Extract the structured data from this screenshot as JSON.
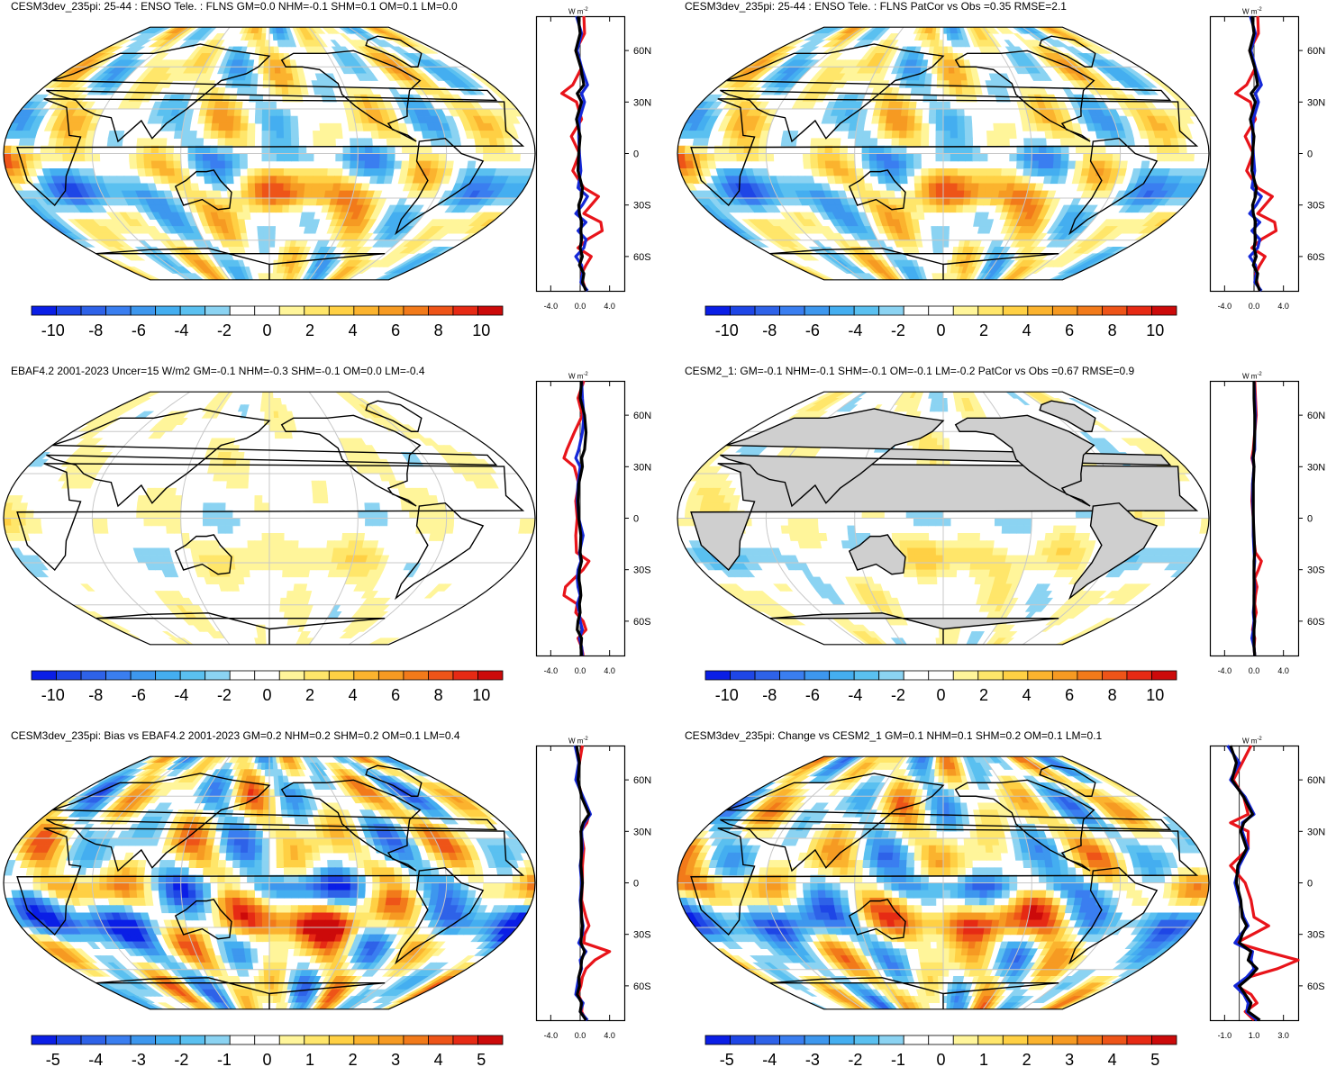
{
  "colors": {
    "land": "#cfcfcf",
    "grid": "#c8c8c8",
    "cb_scale_a": [
      "#0a1ee6",
      "#1e46e6",
      "#2e62e8",
      "#3a7ef0",
      "#3d97ee",
      "#44aef0",
      "#5ac0f0",
      "#8bd3f2",
      "#ffffff",
      "#ffffff",
      "#fff59a",
      "#ffe66a",
      "#ffd044",
      "#fbb32e",
      "#f69a22",
      "#f27a1a",
      "#ee5418",
      "#e62a14",
      "#cc0a0a"
    ],
    "cb_scale_b": [
      "#0a1ee6",
      "#1e46e6",
      "#2e62e8",
      "#3a7ef0",
      "#3d97ee",
      "#44aef0",
      "#5ac0f0",
      "#8bd3f2",
      "#ffffff",
      "#ffffff",
      "#fff59a",
      "#ffe66a",
      "#ffd044",
      "#fbb32e",
      "#f69a22",
      "#f27a1a",
      "#ee5418",
      "#e62a14",
      "#cc0a0a"
    ],
    "profile_model": "#1428d8",
    "profile_obs": "#e8141a",
    "profile_other": "#000000"
  },
  "panels": [
    {
      "id": "p1",
      "title": "CESM3dev_235pi: 25-44 : ENSO Tele. : FLNS GM=0.0 NHM=-0.1 SHM=0.1 OM=0.1 LM=0.0",
      "profile_xticks": [
        "-4.0",
        "0.0",
        "4.0"
      ],
      "profile_units": "W m",
      "profile_units_exp": "-2",
      "colorbar_ticks": [
        "-10",
        "-8",
        "-6",
        "-4",
        "-2",
        "0",
        "2",
        "4",
        "6",
        "8",
        "10"
      ]
    },
    {
      "id": "p2",
      "title": "CESM3dev_235pi: 25-44 : ENSO Tele. : FLNS PatCor vs Obs =0.35 RMSE=2.1",
      "profile_xticks": [
        "-4.0",
        "0.0",
        "4.0"
      ],
      "profile_units": "W m",
      "profile_units_exp": "-2",
      "colorbar_ticks": [
        "-10",
        "-8",
        "-6",
        "-4",
        "-2",
        "0",
        "2",
        "4",
        "6",
        "8",
        "10"
      ]
    },
    {
      "id": "p3",
      "title": "EBAF4.2 2001-2023 Uncer=15 W/m2 GM=-0.1 NHM=-0.3 SHM=-0.1 OM=0.0 LM=-0.4",
      "profile_xticks": [
        "-4.0",
        "0.0",
        "4.0"
      ],
      "profile_units": "W m",
      "profile_units_exp": "-2",
      "colorbar_ticks": [
        "-10",
        "-8",
        "-6",
        "-4",
        "-2",
        "0",
        "2",
        "4",
        "6",
        "8",
        "10"
      ]
    },
    {
      "id": "p4",
      "title": "CESM2_1: GM=-0.1 NHM=-0.1 SHM=-0.1 OM=-0.1 LM=-0.2 PatCor vs Obs =0.67 RMSE=0.9",
      "profile_xticks": [
        "-4.0",
        "0.0",
        "4.0"
      ],
      "profile_units": "W m",
      "profile_units_exp": "-2",
      "colorbar_ticks": [
        "-10",
        "-8",
        "-6",
        "-4",
        "-2",
        "0",
        "2",
        "4",
        "6",
        "8",
        "10"
      ]
    },
    {
      "id": "p5",
      "title": "CESM3dev_235pi: Bias vs EBAF4.2 2001-2023 GM=0.2 NHM=0.2 SHM=0.2 OM=0.1 LM=0.4",
      "profile_xticks": [
        "-4.0",
        "0.0",
        "4.0"
      ],
      "profile_units": "W m",
      "profile_units_exp": "-2",
      "colorbar_ticks": [
        "-5",
        "-4",
        "-3",
        "-2",
        "-1",
        "0",
        "1",
        "2",
        "3",
        "4",
        "5"
      ]
    },
    {
      "id": "p6",
      "title": "CESM3dev_235pi: Change vs CESM2_1 GM=0.1 NHM=0.1 SHM=0.2 OM=0.1 LM=0.1",
      "profile_xticks": [
        "-1.0",
        "1.0",
        "3.0"
      ],
      "profile_units": "W m",
      "profile_units_exp": "-2",
      "colorbar_ticks": [
        "-5",
        "-4",
        "-3",
        "-2",
        "-1",
        "0",
        "1",
        "2",
        "3",
        "4",
        "5"
      ]
    }
  ],
  "chart_data": [
    {
      "type": "heatmap",
      "title": "CESM3dev_235pi: 25-44 : ENSO Tele. : FLNS GM=0.0 NHM=-0.1 SHM=0.1 OM=0.1 LM=0.0",
      "colorbar": {
        "min": -11,
        "max": 11,
        "ticks": [
          -10,
          -8,
          -6,
          -4,
          -2,
          0,
          2,
          4,
          6,
          8,
          10
        ]
      },
      "profile": {
        "type": "line",
        "xlim": [
          -6,
          6
        ],
        "xticks": [
          -4,
          0,
          4
        ],
        "yticks": [
          "60N",
          "30N",
          "0",
          "30S",
          "60S"
        ],
        "lat": [
          80,
          70,
          60,
          50,
          40,
          35,
          30,
          20,
          10,
          0,
          -10,
          -20,
          -25,
          -30,
          -35,
          -40,
          -45,
          -50,
          -55,
          -60,
          -65,
          -70,
          -75,
          -80
        ],
        "series": [
          {
            "values": [
              -0.5,
              0.2,
              -0.4,
              0.2,
              1.0,
              0.2,
              0.6,
              -0.1,
              -0.2,
              -0.1,
              0.1,
              -0.3,
              1.0,
              0.3,
              -0.6,
              0.8,
              -0.3,
              0.8,
              0.5,
              -0.6,
              0.2,
              0.3,
              0.1,
              1.0
            ]
          },
          {
            "values": [
              -0.3,
              0.0,
              -0.6,
              0.1,
              0.5,
              -0.4,
              0.2,
              -0.5,
              0.0,
              -0.2,
              -0.3,
              0.3,
              0.2,
              -0.2,
              -0.1,
              0.2,
              0.1,
              0.2,
              0.0,
              0.3,
              -0.1,
              0.5,
              0.3,
              0.8
            ]
          },
          {
            "values": [
              0.5,
              0.6,
              -0.6,
              0.2,
              -1.0,
              -2.5,
              -0.5,
              0.2,
              -1.2,
              -0.1,
              -1.0,
              0.5,
              2.5,
              1.5,
              0.5,
              2.8,
              3.0,
              1.0,
              -0.3,
              1.5,
              0.8,
              0.2,
              0.4,
              0.8
            ]
          }
        ]
      }
    },
    {
      "type": "heatmap",
      "title": "CESM3dev_235pi: 25-44 : ENSO Tele. : FLNS PatCor vs Obs =0.35 RMSE=2.1",
      "colorbar": {
        "min": -11,
        "max": 11,
        "ticks": [
          -10,
          -8,
          -6,
          -4,
          -2,
          0,
          2,
          4,
          6,
          8,
          10
        ]
      },
      "profile": {
        "type": "line",
        "xlim": [
          -6,
          6
        ],
        "xticks": [
          -4,
          0,
          4
        ],
        "yticks": [
          "60N",
          "30N",
          "0",
          "30S",
          "60S"
        ],
        "lat": [
          80,
          70,
          60,
          50,
          40,
          35,
          30,
          20,
          10,
          0,
          -10,
          -20,
          -25,
          -30,
          -35,
          -40,
          -45,
          -50,
          -55,
          -60,
          -65,
          -70,
          -75,
          -80
        ],
        "series": [
          {
            "values": [
              -0.5,
              0.2,
              -0.4,
              0.2,
              1.0,
              0.2,
              0.6,
              -0.1,
              -0.2,
              -0.1,
              0.1,
              -0.3,
              1.0,
              0.3,
              -0.6,
              0.8,
              -0.3,
              0.8,
              0.5,
              -0.6,
              0.2,
              0.3,
              0.1,
              1.0
            ]
          },
          {
            "values": [
              -0.3,
              0.0,
              -0.6,
              0.1,
              0.5,
              -0.4,
              0.2,
              -0.5,
              0.0,
              -0.2,
              -0.3,
              0.3,
              0.2,
              -0.2,
              -0.1,
              0.2,
              0.1,
              0.2,
              0.0,
              0.3,
              -0.1,
              0.5,
              0.3,
              0.8
            ]
          },
          {
            "values": [
              0.5,
              0.6,
              -0.6,
              0.2,
              -1.0,
              -2.5,
              -0.5,
              0.2,
              -1.2,
              -0.1,
              -1.0,
              0.5,
              2.5,
              1.5,
              0.5,
              2.8,
              3.0,
              1.0,
              -0.3,
              1.5,
              0.8,
              0.2,
              0.4,
              0.8
            ]
          }
        ]
      }
    },
    {
      "type": "heatmap",
      "title": "EBAF4.2 2001-2023 Uncer=15 W/m2 GM=-0.1 NHM=-0.3 SHM=-0.1 OM=0.0 LM=-0.4",
      "colorbar": {
        "min": -11,
        "max": 11,
        "ticks": [
          -10,
          -8,
          -6,
          -4,
          -2,
          0,
          2,
          4,
          6,
          8,
          10
        ]
      },
      "profile": {
        "type": "line",
        "xlim": [
          -6,
          6
        ],
        "xticks": [
          -4,
          0,
          4
        ],
        "yticks": [
          "60N",
          "30N",
          "0",
          "30S",
          "60S"
        ],
        "lat": [
          80,
          70,
          60,
          50,
          40,
          35,
          30,
          20,
          10,
          0,
          -10,
          -20,
          -25,
          -30,
          -35,
          -40,
          -45,
          -50,
          -55,
          -60,
          -65,
          -70,
          -75,
          -80
        ],
        "series": [
          {
            "values": [
              0.2,
              0.3,
              0.5,
              0.3,
              -0.2,
              -0.6,
              0.0,
              -0.3,
              -0.4,
              -0.2,
              0.4,
              -0.1,
              0.1,
              -0.3,
              -0.4,
              -0.3,
              0.0,
              -0.4,
              -0.1,
              0.0,
              0.3,
              -0.1,
              0.2,
              0.3
            ]
          },
          {
            "values": [
              0.2,
              0.0,
              0.6,
              0.8,
              0.6,
              0.2,
              0.3,
              -0.2,
              -0.3,
              -0.2,
              0.1,
              0.0,
              0.2,
              -0.1,
              -0.2,
              0.0,
              0.1,
              -0.1,
              0.0,
              -0.3,
              -0.4,
              0.2,
              0.1,
              0.2
            ]
          },
          {
            "values": [
              0.5,
              -0.3,
              0.3,
              -0.8,
              -1.8,
              -2.2,
              -0.8,
              -0.2,
              -0.6,
              -0.4,
              -0.6,
              -0.5,
              1.2,
              0.4,
              -0.8,
              -2.0,
              -2.2,
              -0.4,
              -0.6,
              0.4,
              0.8,
              -0.3,
              0.2,
              0.4
            ]
          }
        ]
      }
    },
    {
      "type": "heatmap",
      "title": "CESM2_1: GM=-0.1 NHM=-0.1 SHM=-0.1 OM=-0.1 LM=-0.2 PatCor vs Obs =0.67 RMSE=0.9",
      "colorbar": {
        "min": -11,
        "max": 11,
        "ticks": [
          -10,
          -8,
          -6,
          -4,
          -2,
          0,
          2,
          4,
          6,
          8,
          10
        ]
      },
      "profile": {
        "type": "line",
        "xlim": [
          -6,
          6
        ],
        "xticks": [
          -4,
          0,
          4
        ],
        "yticks": [
          "60N",
          "30N",
          "0",
          "30S",
          "60S"
        ],
        "lat": [
          80,
          70,
          60,
          50,
          40,
          35,
          30,
          20,
          10,
          0,
          -10,
          -20,
          -25,
          -30,
          -35,
          -40,
          -45,
          -50,
          -55,
          -60,
          -65,
          -70,
          -75,
          -80
        ],
        "series": [
          {
            "values": [
              0.0,
              0.1,
              0.2,
              0.1,
              0.1,
              -0.2,
              0.0,
              -0.2,
              -0.2,
              -0.1,
              -0.1,
              0.0,
              0.1,
              0.0,
              0.0,
              0.1,
              0.0,
              0.0,
              -0.1,
              0.0,
              -0.1,
              -0.3,
              0.0,
              0.1
            ]
          },
          {
            "values": [
              0.0,
              0.0,
              0.1,
              0.1,
              0.0,
              -0.1,
              0.0,
              -0.1,
              -0.1,
              -0.1,
              0.0,
              0.1,
              0.0,
              0.0,
              0.0,
              0.0,
              0.0,
              0.0,
              0.0,
              0.1,
              0.0,
              0.0,
              0.0,
              0.1
            ]
          },
          {
            "values": [
              0.1,
              0.2,
              0.3,
              0.1,
              -0.1,
              -0.3,
              0.0,
              -0.2,
              -0.3,
              -0.1,
              -0.1,
              0.2,
              1.0,
              0.6,
              0.1,
              0.4,
              0.2,
              0.1,
              0.3,
              0.0,
              -0.2,
              0.1,
              0.0,
              0.1
            ]
          }
        ]
      }
    },
    {
      "type": "heatmap",
      "title": "CESM3dev_235pi: Bias vs EBAF4.2 2001-2023 GM=0.2 NHM=0.2 SHM=0.2 OM=0.1 LM=0.4",
      "colorbar": {
        "min": -5.5,
        "max": 5.5,
        "ticks": [
          -5,
          -4,
          -3,
          -2,
          -1,
          0,
          1,
          2,
          3,
          4,
          5
        ]
      },
      "profile": {
        "type": "line",
        "xlim": [
          -6,
          6
        ],
        "xticks": [
          -4,
          0,
          4
        ],
        "yticks": [
          "60N",
          "30N",
          "0",
          "30S",
          "60S"
        ],
        "lat": [
          80,
          70,
          60,
          50,
          40,
          35,
          30,
          20,
          10,
          0,
          -10,
          -20,
          -25,
          -30,
          -35,
          -40,
          -45,
          -50,
          -55,
          -60,
          -65,
          -70,
          -75,
          -80
        ],
        "series": [
          {
            "values": [
              -0.7,
              -0.2,
              -0.6,
              0.4,
              1.4,
              0.6,
              0.2,
              0.3,
              0.0,
              0.2,
              0.0,
              0.2,
              0.4,
              0.3,
              -0.2,
              0.8,
              0.0,
              0.2,
              -0.2,
              -0.4,
              -0.6,
              0.4,
              0.0,
              1.0
            ]
          },
          {
            "values": [
              -0.5,
              -0.1,
              -0.3,
              0.2,
              1.2,
              0.4,
              0.1,
              0.2,
              0.1,
              0.3,
              0.1,
              0.2,
              0.3,
              0.2,
              0.1,
              0.6,
              0.2,
              0.1,
              -0.2,
              -0.1,
              -0.4,
              0.2,
              0.0,
              0.8
            ]
          },
          {
            "values": [
              0.3,
              -0.1,
              -0.4,
              0.3,
              1.2,
              0.9,
              0.1,
              0.5,
              0.3,
              0.3,
              0.2,
              0.8,
              1.2,
              0.6,
              0.5,
              4.0,
              2.0,
              0.8,
              0.3,
              0.1,
              -0.3,
              0.3,
              0.2,
              0.8
            ]
          }
        ]
      }
    },
    {
      "type": "heatmap",
      "title": "CESM3dev_235pi: Change vs CESM2_1 GM=0.1 NHM=0.1 SHM=0.2 OM=0.1 LM=0.1",
      "colorbar": {
        "min": -5.5,
        "max": 5.5,
        "ticks": [
          -5,
          -4,
          -3,
          -2,
          -1,
          0,
          1,
          2,
          3,
          4,
          5
        ]
      },
      "profile": {
        "type": "line",
        "xlim": [
          -2,
          4
        ],
        "xticks": [
          -1,
          1,
          3
        ],
        "yticks": [
          "60N",
          "30N",
          "0",
          "30S",
          "60S"
        ],
        "lat": [
          80,
          70,
          60,
          50,
          40,
          35,
          30,
          20,
          10,
          0,
          -10,
          -20,
          -25,
          -30,
          -35,
          -40,
          -45,
          -50,
          -55,
          -60,
          -65,
          -70,
          -75,
          -80
        ],
        "series": [
          {
            "values": [
              -0.8,
              0.0,
              -0.6,
              0.4,
              1.0,
              0.2,
              0.2,
              0.6,
              0.0,
              -0.3,
              0.0,
              0.3,
              0.6,
              0.1,
              -0.3,
              0.9,
              0.8,
              1.0,
              0.5,
              -0.3,
              0.3,
              0.6,
              0.5,
              1.2
            ]
          },
          {
            "values": [
              -0.6,
              -0.2,
              -0.5,
              0.3,
              0.9,
              0.3,
              0.1,
              0.5,
              -0.1,
              -0.2,
              0.1,
              0.2,
              0.5,
              0.2,
              0.0,
              0.8,
              0.6,
              1.2,
              0.7,
              0.0,
              0.4,
              0.8,
              0.6,
              1.4
            ]
          },
          {
            "values": [
              0.8,
              0.2,
              -0.4,
              0.3,
              0.6,
              -0.6,
              0.6,
              0.6,
              -0.6,
              0.4,
              0.8,
              1.0,
              2.0,
              0.9,
              -0.2,
              1.8,
              4.0,
              2.6,
              0.6,
              -0.2,
              0.8,
              1.2,
              0.4,
              1.0
            ]
          }
        ]
      }
    }
  ]
}
